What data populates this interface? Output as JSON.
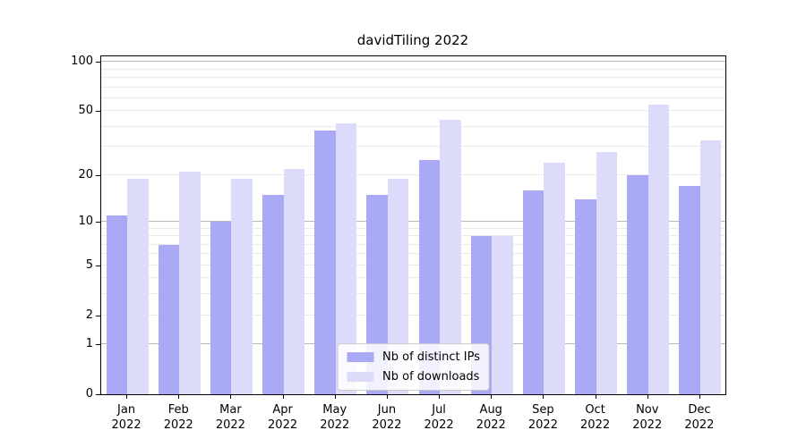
{
  "chart_data": {
    "type": "bar",
    "title": "davidTiling 2022",
    "x_tick_year": "2022",
    "categories": [
      "Jan",
      "Feb",
      "Mar",
      "Apr",
      "May",
      "Jun",
      "Jul",
      "Aug",
      "Sep",
      "Oct",
      "Nov",
      "Dec"
    ],
    "series": [
      {
        "name": "Nb of distinct IPs",
        "color": "#a9a9f5",
        "values": [
          11,
          7,
          10,
          15,
          38,
          15,
          25,
          8,
          16,
          14,
          20,
          17
        ]
      },
      {
        "name": "Nb of downloads",
        "color": "#dcdcfa",
        "values": [
          19,
          21,
          19,
          22,
          42,
          19,
          44,
          8,
          24,
          28,
          55,
          33
        ]
      }
    ],
    "y_axis": {
      "scale": "log10(1+y)",
      "tick_values": [
        0,
        1,
        2,
        5,
        10,
        20,
        50,
        100
      ],
      "tick_labels": [
        "0",
        "1",
        "2",
        "5",
        "10",
        "20",
        "50",
        "100"
      ],
      "major_gridlines": [
        1,
        10,
        100
      ],
      "minor_gridlines": [
        2,
        3,
        4,
        5,
        6,
        7,
        8,
        9,
        20,
        30,
        40,
        50,
        60,
        70,
        80,
        90
      ],
      "ylim_bottom": 0,
      "ylim_top": 111
    },
    "legend_position": "lower center",
    "grid": true,
    "colors": {
      "major_grid": "#b9b9b9",
      "minor_grid": "#ebebeb",
      "axis_frame": "#000000",
      "background": "#ffffff"
    }
  }
}
